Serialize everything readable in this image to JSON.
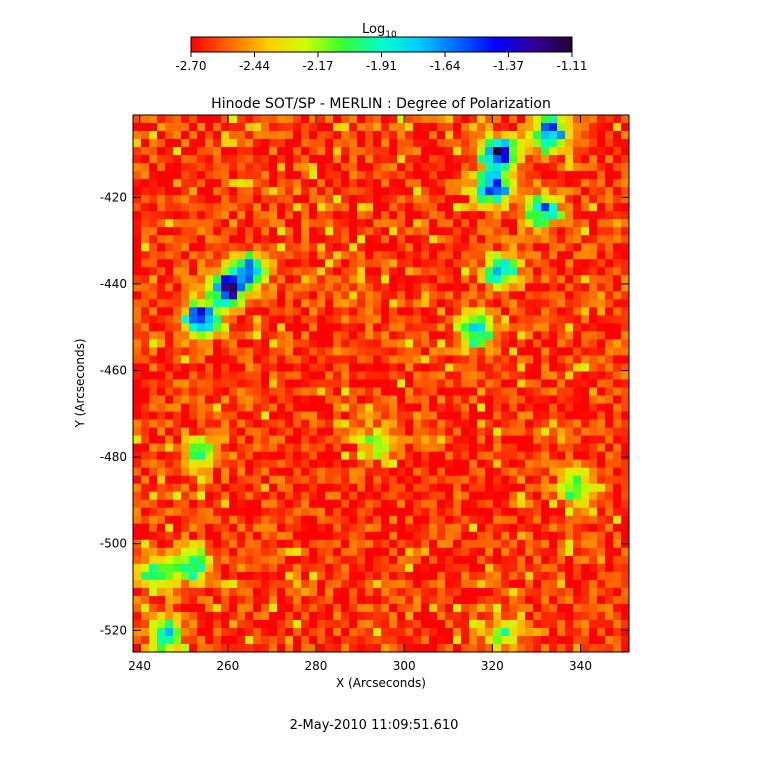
{
  "colorbar": {
    "label_main": "Log",
    "label_sub": "10",
    "ticks": [
      "-2.70",
      "-2.44",
      "-2.17",
      "-1.91",
      "-1.64",
      "-1.37",
      "-1.11"
    ],
    "colors": [
      "#ff0000",
      "#ff6600",
      "#ffcc00",
      "#ccff00",
      "#33ff33",
      "#00ffcc",
      "#00ccff",
      "#0066ff",
      "#0000ff",
      "#330099",
      "#200033"
    ]
  },
  "chart_data": {
    "type": "heatmap",
    "title": "Hinode SOT/SP - MERLIN : Degree of Polarization",
    "xlabel": "X (Arcseconds)",
    "ylabel": "Y (Arcseconds)",
    "xlim": [
      238.5,
      351
    ],
    "ylim": [
      -525,
      -401
    ],
    "xticks": [
      240,
      260,
      280,
      300,
      320,
      340
    ],
    "yticks": [
      -420,
      -440,
      -460,
      -480,
      -500,
      -520
    ],
    "value_range": [
      -2.7,
      -1.11
    ],
    "value_scale": "log10",
    "background_level": -2.62,
    "features": [
      {
        "x": 260,
        "y": -441,
        "strength": 1.0
      },
      {
        "x": 254,
        "y": -448,
        "strength": 1.0
      },
      {
        "x": 265,
        "y": -437,
        "strength": 0.8
      },
      {
        "x": 322,
        "y": -410,
        "strength": 1.0
      },
      {
        "x": 320,
        "y": -418,
        "strength": 0.9
      },
      {
        "x": 333,
        "y": -405,
        "strength": 0.8
      },
      {
        "x": 331,
        "y": -423,
        "strength": 0.7
      },
      {
        "x": 322,
        "y": -437,
        "strength": 0.7
      },
      {
        "x": 316,
        "y": -451,
        "strength": 0.6
      },
      {
        "x": 254,
        "y": -479,
        "strength": 0.5
      },
      {
        "x": 244,
        "y": -507,
        "strength": 0.6
      },
      {
        "x": 252,
        "y": -505,
        "strength": 0.6
      },
      {
        "x": 246,
        "y": -521,
        "strength": 0.6
      },
      {
        "x": 339,
        "y": -487,
        "strength": 0.5
      },
      {
        "x": 294,
        "y": -477,
        "strength": 0.4
      },
      {
        "x": 322,
        "y": -521,
        "strength": 0.4
      }
    ]
  },
  "footer": {
    "timestamp": "2-May-2010 11:09:51.610"
  }
}
